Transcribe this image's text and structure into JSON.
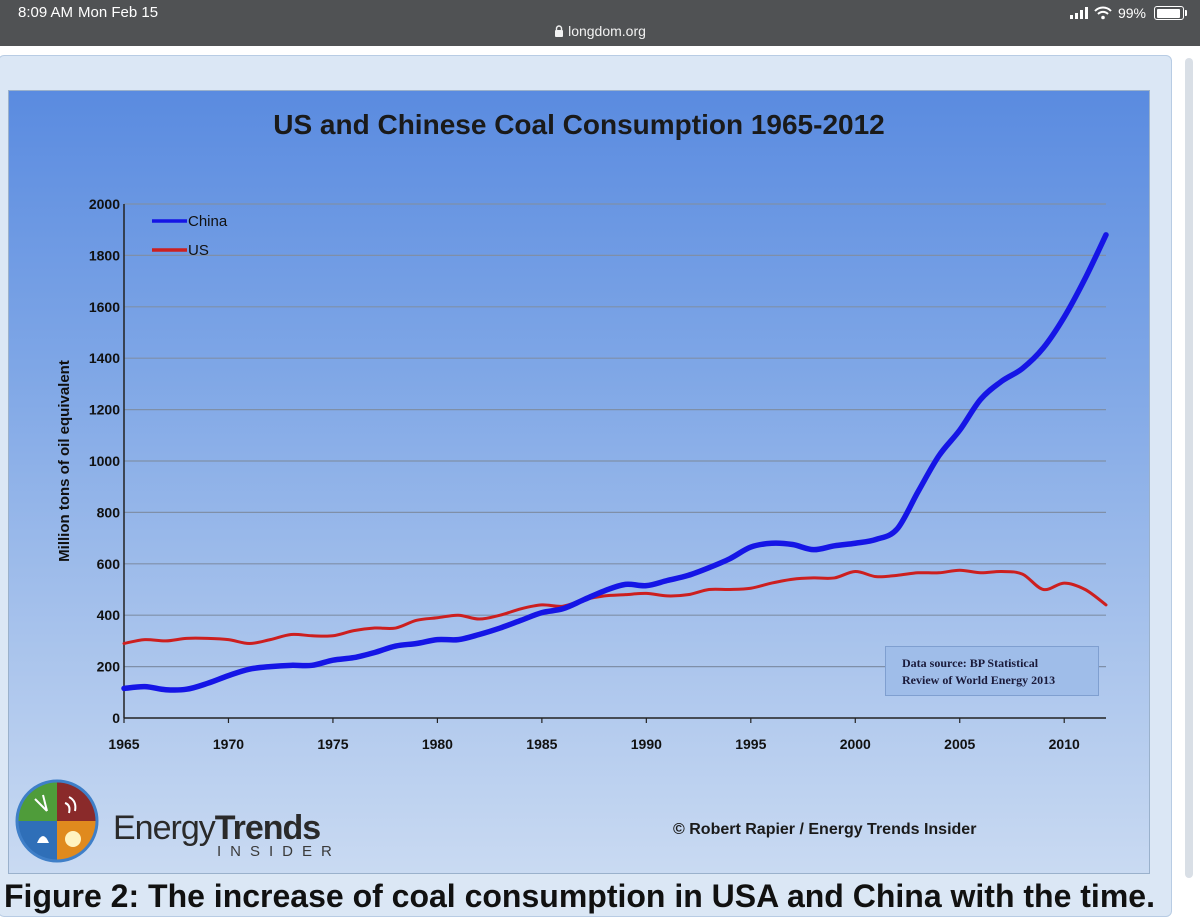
{
  "status_bar": {
    "time": "8:09 AM",
    "date": "Mon Feb 15",
    "url": "longdom.org",
    "battery": "99%",
    "battery_level": 0.99
  },
  "chart_data": {
    "type": "line",
    "title": "US and Chinese Coal Consumption 1965-2012",
    "xlabel": "",
    "ylabel": "Million tons of oil equivalent",
    "xlim": [
      1965,
      2012
    ],
    "ylim": [
      0,
      2000
    ],
    "x_ticks": [
      1965,
      1970,
      1975,
      1980,
      1985,
      1990,
      1995,
      2000,
      2005,
      2010
    ],
    "y_ticks": [
      0,
      200,
      400,
      600,
      800,
      1000,
      1200,
      1400,
      1600,
      1800,
      2000
    ],
    "grid": true,
    "legend_position": "top-left",
    "x": [
      1965,
      1966,
      1967,
      1968,
      1969,
      1970,
      1971,
      1972,
      1973,
      1974,
      1975,
      1976,
      1977,
      1978,
      1979,
      1980,
      1981,
      1982,
      1983,
      1984,
      1985,
      1986,
      1987,
      1988,
      1989,
      1990,
      1991,
      1992,
      1993,
      1994,
      1995,
      1996,
      1997,
      1998,
      1999,
      2000,
      2001,
      2002,
      2003,
      2004,
      2005,
      2006,
      2007,
      2008,
      2009,
      2010,
      2011,
      2012
    ],
    "series": [
      {
        "name": "China",
        "color": "#1515e6",
        "values": [
          115,
          122,
          110,
          112,
          135,
          165,
          190,
          200,
          205,
          205,
          225,
          235,
          255,
          280,
          290,
          305,
          305,
          325,
          350,
          380,
          410,
          425,
          460,
          495,
          520,
          515,
          535,
          555,
          585,
          620,
          665,
          680,
          675,
          655,
          670,
          680,
          695,
          735,
          880,
          1020,
          1120,
          1240,
          1310,
          1360,
          1440,
          1560,
          1710,
          1880
        ]
      },
      {
        "name": "US",
        "color": "#cc1f1f",
        "values": [
          290,
          305,
          300,
          310,
          310,
          305,
          290,
          305,
          325,
          320,
          320,
          340,
          350,
          350,
          380,
          390,
          400,
          385,
          400,
          425,
          440,
          435,
          460,
          475,
          480,
          485,
          475,
          480,
          500,
          500,
          505,
          525,
          540,
          545,
          545,
          570,
          550,
          555,
          565,
          565,
          575,
          565,
          570,
          560,
          500,
          525,
          500,
          440
        ]
      }
    ],
    "annotations": [
      "Data source: BP Statistical",
      "Review of World Energy 2013",
      "© Robert Rapier / Energy Trends Insider"
    ]
  },
  "logo": {
    "word_regular": "Energy",
    "word_bold": "Trends",
    "subtitle": "INSIDER"
  },
  "caption": "Figure 2: The increase of coal consumption in USA and China with the time."
}
